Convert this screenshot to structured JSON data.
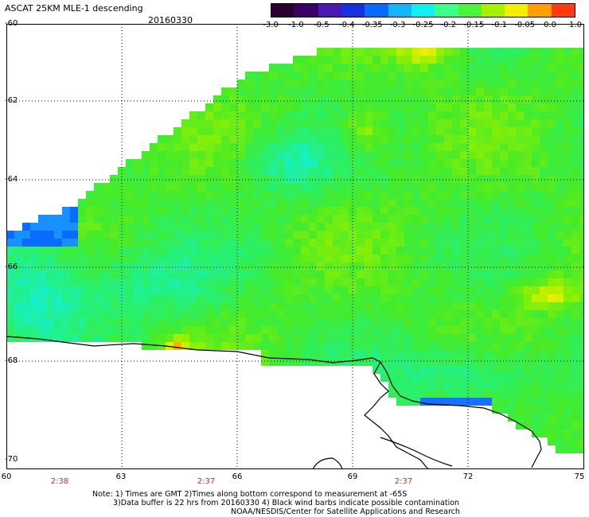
{
  "header": {
    "title": "ASCAT 25KM MLE-1 descending",
    "date": "20160330"
  },
  "colorbar": {
    "tick_labels": [
      "-3.0",
      "-1.0",
      "-0.5",
      "-0.4",
      "-0.35",
      "-0.3",
      "-0.25",
      "-0.2",
      "-0.15",
      "-0.1",
      "-0.05",
      "0.0",
      "1.0"
    ],
    "colors": [
      "#2a0030",
      "#3a0066",
      "#4a1ab0",
      "#1830e0",
      "#0a6cff",
      "#16b4ff",
      "#10f0f0",
      "#3cff8c",
      "#4cf53a",
      "#a8f000",
      "#f0f000",
      "#ffa000",
      "#ff3c10"
    ]
  },
  "map": {
    "lat_labels": [
      "-60",
      "-62",
      "-64",
      "-66",
      "-68",
      "-70"
    ],
    "lon_labels": [
      "60",
      "63",
      "66",
      "69",
      "72",
      "75"
    ],
    "time_labels": [
      "2:38",
      "2:37",
      "2:37"
    ],
    "colors": {
      "coastline": "#000000",
      "grid": "#000000"
    }
  },
  "notes": {
    "line1": "Note: 1) Times are GMT 2)Times along bottom correspond to measurement at -65S",
    "line2": "3)Data buffer is 22 hrs from 20160330 4) Black wind barbs indicate possible contamination",
    "line3": "NOAA/NESDIS/Center for Satellite Applications and Research"
  }
}
